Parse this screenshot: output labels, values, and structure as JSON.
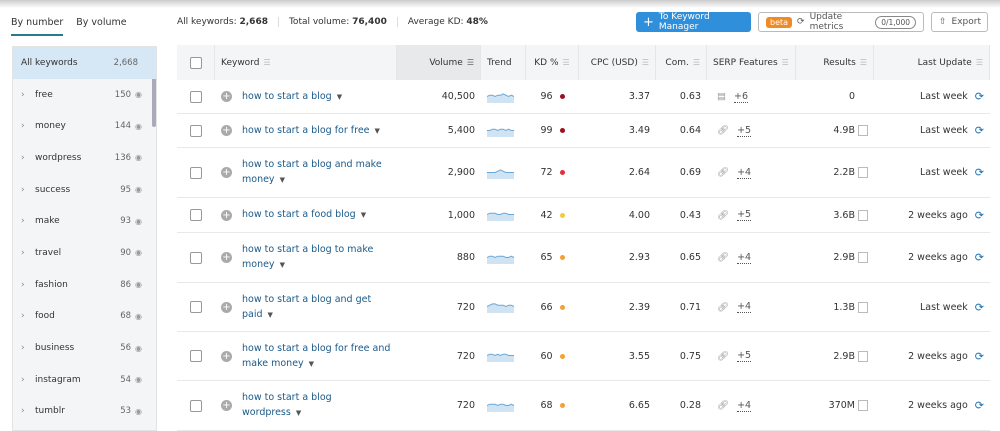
{
  "view_tabs": [
    "By number",
    "By volume"
  ],
  "stats": [
    {
      "label": "All keywords:",
      "value": "2,668"
    },
    {
      "label": "Total volume:",
      "value": "76,400"
    },
    {
      "label": "Average KD:",
      "value": "48%"
    }
  ],
  "toolbar": {
    "keyword_manager": "To Keyword Manager",
    "beta": "beta",
    "update_metrics": "Update metrics",
    "quota": "0/1,000",
    "export": "Export"
  },
  "sidebar": [
    {
      "label": "All keywords",
      "count": "2,668"
    },
    {
      "label": "free",
      "count": "150"
    },
    {
      "label": "money",
      "count": "144"
    },
    {
      "label": "wordpress",
      "count": "136"
    },
    {
      "label": "success",
      "count": "95"
    },
    {
      "label": "make",
      "count": "93"
    },
    {
      "label": "travel",
      "count": "90"
    },
    {
      "label": "fashion",
      "count": "86"
    },
    {
      "label": "food",
      "count": "68"
    },
    {
      "label": "business",
      "count": "56"
    },
    {
      "label": "instagram",
      "count": "54"
    },
    {
      "label": "tumblr",
      "count": "53"
    }
  ],
  "columns": [
    "Keyword",
    "Volume",
    "Trend",
    "KD %",
    "CPC (USD)",
    "Com.",
    "SERP Features",
    "Results",
    "Last Update"
  ],
  "kd_colors": {
    "very_hard": "#9b1020",
    "hard": "#e0303a",
    "medium": "#f5a030",
    "easy": "#f5c842"
  },
  "rows": [
    {
      "keyword": "how to start a blog",
      "volume": "40,500",
      "kd": "96",
      "kdc": "#9b1020",
      "cpc": "3.37",
      "com": "0.63",
      "serp_icon": "page-icon",
      "serp_more": "+6",
      "results": "0",
      "doc": false,
      "updated": "Last week",
      "trend": [
        5,
        6,
        6,
        5,
        6,
        6,
        7,
        6,
        5,
        6,
        5
      ]
    },
    {
      "keyword": "how to start a blog for free",
      "volume": "5,400",
      "kd": "99",
      "kdc": "#9b1020",
      "cpc": "3.49",
      "com": "0.64",
      "serp_icon": "link-icon",
      "serp_more": "+5",
      "results": "4.9B",
      "doc": true,
      "updated": "Last week",
      "trend": [
        5,
        5,
        6,
        6,
        5,
        6,
        6,
        5,
        6,
        5,
        5
      ]
    },
    {
      "keyword": "how to start a blog and make money",
      "volume": "2,900",
      "kd": "72",
      "kdc": "#e0303a",
      "cpc": "2.64",
      "com": "0.69",
      "serp_icon": "link-icon",
      "serp_more": "+4",
      "results": "2.2B",
      "doc": true,
      "updated": "Last week",
      "trend": [
        5,
        5,
        5,
        5,
        6,
        7,
        6,
        5,
        5,
        5,
        5
      ]
    },
    {
      "keyword": "how to start a food blog",
      "volume": "1,000",
      "kd": "42",
      "kdc": "#f5c842",
      "cpc": "4.00",
      "com": "0.43",
      "serp_icon": "link-icon",
      "serp_more": "+5",
      "results": "3.6B",
      "doc": true,
      "updated": "2 weeks ago",
      "trend": [
        5,
        6,
        6,
        6,
        5,
        5,
        6,
        6,
        5,
        5,
        5
      ]
    },
    {
      "keyword": "how to start a blog to make money",
      "volume": "880",
      "kd": "65",
      "kdc": "#f5a030",
      "cpc": "2.93",
      "com": "0.65",
      "serp_icon": "link-icon",
      "serp_more": "+4",
      "results": "2.9B",
      "doc": true,
      "updated": "2 weeks ago",
      "trend": [
        5,
        6,
        6,
        5,
        6,
        6,
        6,
        5,
        5,
        6,
        5
      ]
    },
    {
      "keyword": "how to start a blog and get paid",
      "volume": "720",
      "kd": "66",
      "kdc": "#f5a030",
      "cpc": "2.39",
      "com": "0.71",
      "serp_icon": "link-icon",
      "serp_more": "+4",
      "results": "1.3B",
      "doc": true,
      "updated": "Last week",
      "trend": [
        5,
        6,
        7,
        7,
        6,
        6,
        6,
        5,
        6,
        6,
        5
      ]
    },
    {
      "keyword": "how to start a blog for free and make money",
      "volume": "720",
      "kd": "60",
      "kdc": "#f5a030",
      "cpc": "3.55",
      "com": "0.75",
      "serp_icon": "link-icon",
      "serp_more": "+5",
      "results": "2.9B",
      "doc": true,
      "updated": "2 weeks ago",
      "trend": [
        5,
        6,
        6,
        5,
        6,
        5,
        6,
        6,
        5,
        5,
        5
      ]
    },
    {
      "keyword": "how to start a blog wordpress",
      "volume": "720",
      "kd": "68",
      "kdc": "#f5a030",
      "cpc": "6.65",
      "com": "0.28",
      "serp_icon": "link-icon",
      "serp_more": "+4",
      "results": "370M",
      "doc": true,
      "updated": "2 weeks ago",
      "trend": [
        5,
        6,
        6,
        6,
        5,
        6,
        6,
        5,
        5,
        6,
        5
      ]
    }
  ]
}
